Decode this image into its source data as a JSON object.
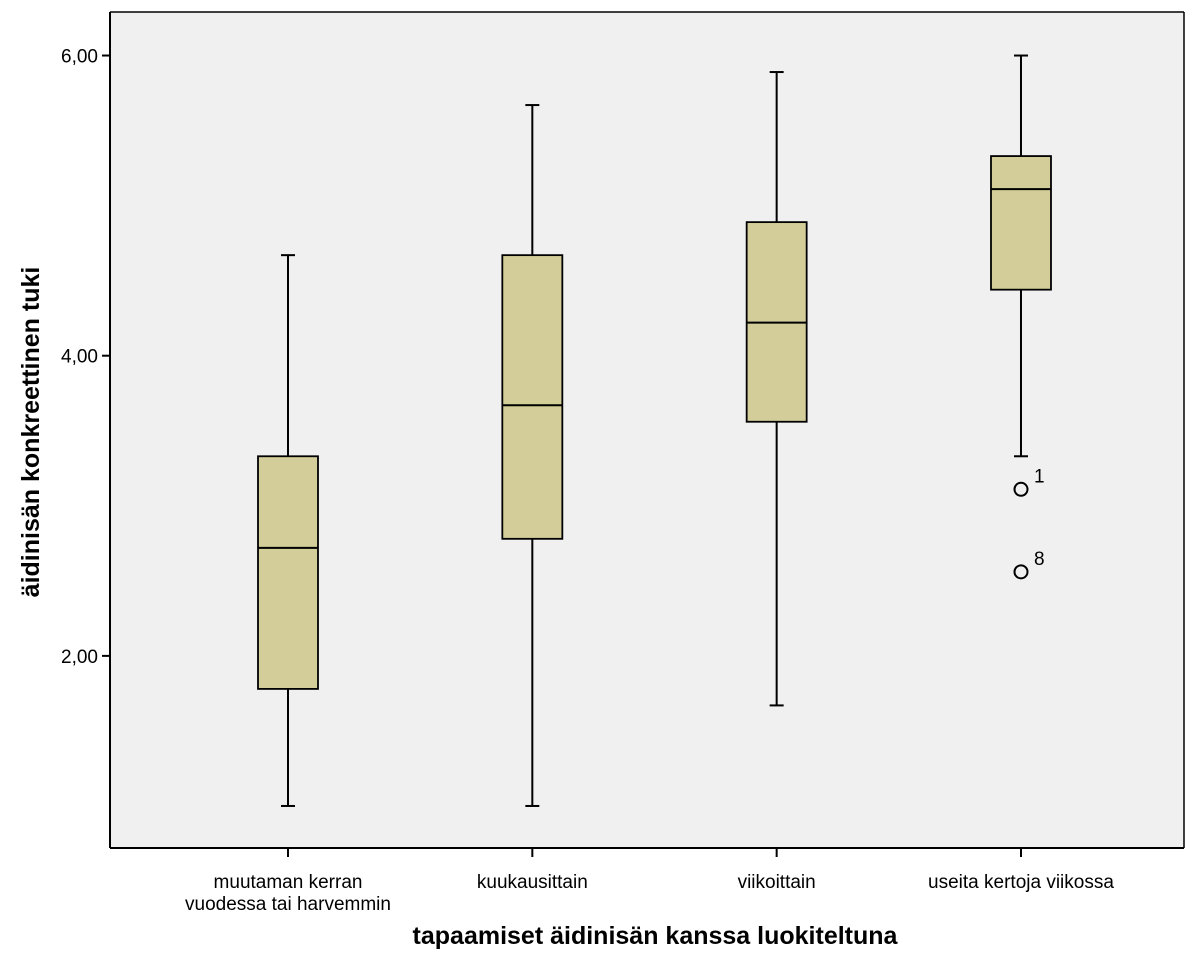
{
  "chart_data": {
    "type": "boxplot",
    "xlabel": "tapaamiset äidinisän kanssa luokiteltuna",
    "ylabel": "äidinisän konkreettinen tuki",
    "ylim": [
      0.72,
      6.29
    ],
    "yticks": [
      {
        "value": 2,
        "label": "2,00"
      },
      {
        "value": 4,
        "label": "4,00"
      },
      {
        "value": 6,
        "label": "6,00"
      }
    ],
    "grid": false,
    "plot_background": "#f0f0f0",
    "box_fill": "#d3ce99",
    "categories": [
      {
        "label_lines": [
          "muutaman kerran",
          "vuodessa tai harvemmin"
        ],
        "whisker_low": 1.0,
        "q1": 1.78,
        "median": 2.72,
        "q3": 3.33,
        "whisker_high": 4.67,
        "outliers": []
      },
      {
        "label_lines": [
          "kuukausittain"
        ],
        "whisker_low": 1.0,
        "q1": 2.78,
        "median": 3.67,
        "q3": 4.67,
        "whisker_high": 5.67,
        "outliers": []
      },
      {
        "label_lines": [
          "viikoittain"
        ],
        "whisker_low": 1.67,
        "q1": 3.56,
        "median": 4.22,
        "q3": 4.89,
        "whisker_high": 5.89,
        "outliers": []
      },
      {
        "label_lines": [
          "useita kertoja viikossa"
        ],
        "whisker_low": 3.33,
        "q1": 4.44,
        "median": 5.11,
        "q3": 5.33,
        "whisker_high": 6.0,
        "outliers": [
          {
            "value": 3.11,
            "label": "1"
          },
          {
            "value": 2.56,
            "label": "8"
          }
        ]
      }
    ]
  }
}
